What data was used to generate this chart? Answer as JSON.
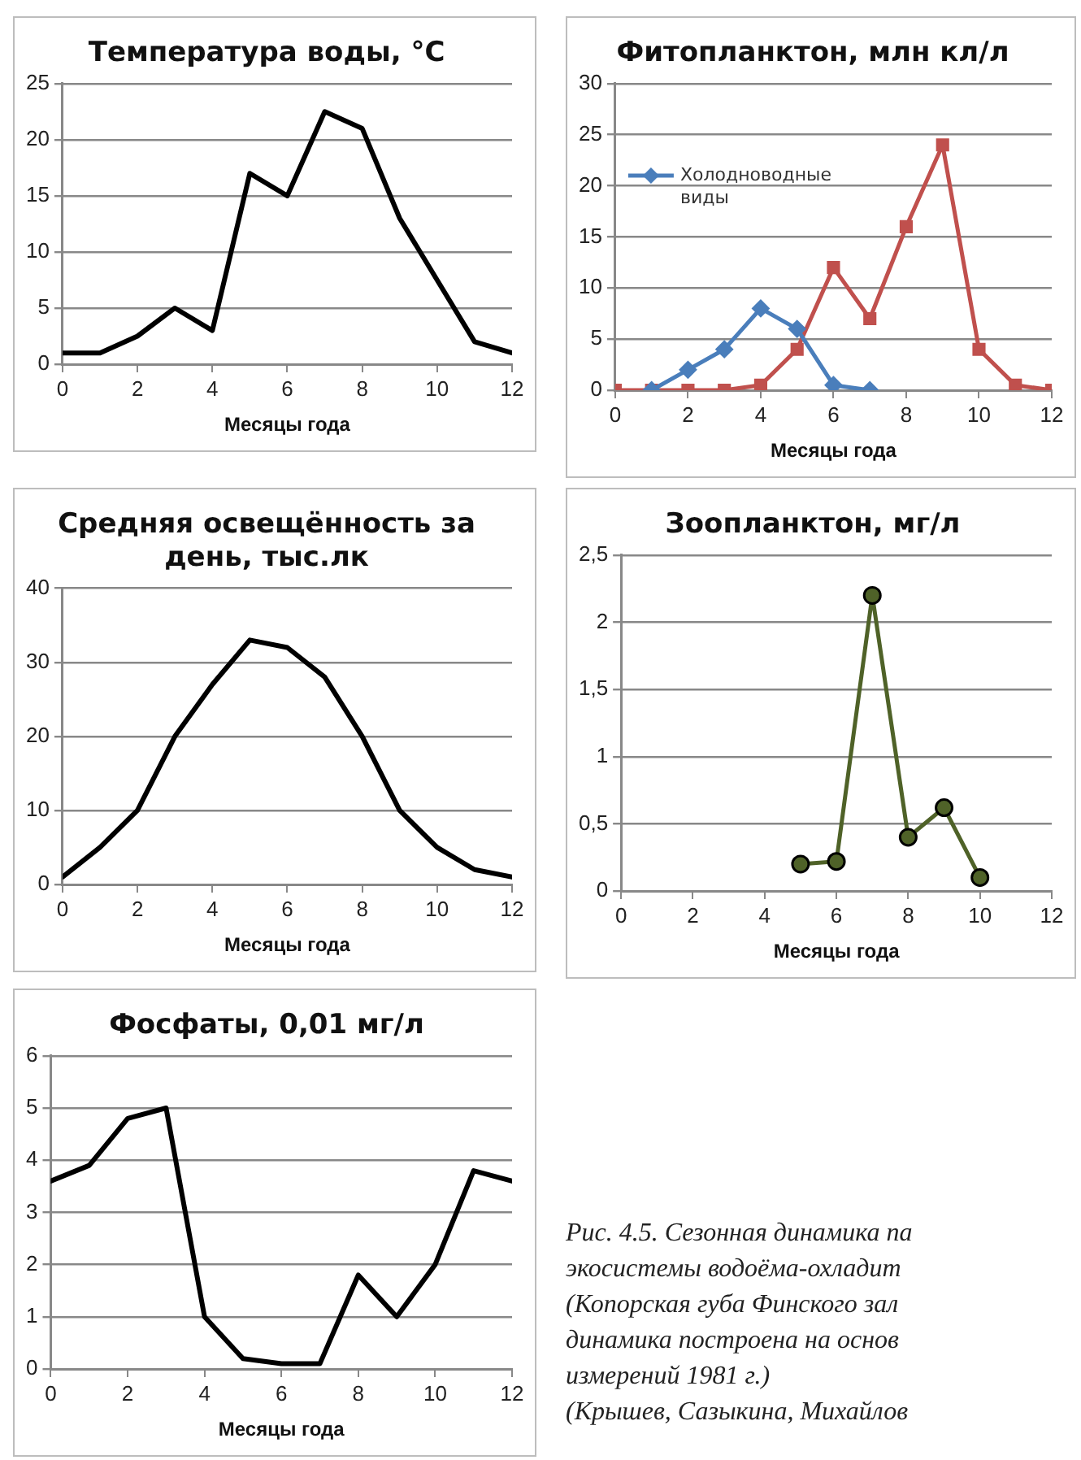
{
  "chart_data": [
    {
      "type": "line",
      "title": "Температура воды, °C",
      "xlabel": "Месяцы года",
      "x": [
        0,
        1,
        2,
        3,
        4,
        5,
        6,
        7,
        8,
        9,
        10,
        11,
        12
      ],
      "series": [
        {
          "color": "#000000",
          "values": [
            1,
            1,
            2.5,
            5,
            3,
            17,
            15,
            22.5,
            21,
            13,
            7.5,
            2,
            1
          ]
        }
      ],
      "xlim": [
        0,
        12
      ],
      "xticks": [
        0,
        2,
        4,
        6,
        8,
        10,
        12
      ],
      "ylim": [
        0,
        25
      ],
      "yticks": [
        0,
        5,
        10,
        15,
        20,
        25
      ],
      "grid": "y",
      "legend": false
    },
    {
      "type": "line",
      "title": "Фитопланктон, млн кл/л",
      "xlabel": "Месяцы года",
      "series": [
        {
          "name": "Холодноводные виды",
          "color": "#4a7ebb",
          "marker": "diamond",
          "x": [
            1,
            2,
            3,
            4,
            5,
            6,
            7
          ],
          "values": [
            0,
            2,
            4,
            8,
            6,
            0.5,
            0
          ]
        },
        {
          "color": "#c0504d",
          "marker": "square",
          "x": [
            0,
            1,
            2,
            3,
            4,
            5,
            6,
            7,
            8,
            9,
            10,
            11,
            12
          ],
          "values": [
            0,
            0,
            0,
            0,
            0.5,
            4,
            12,
            7,
            16,
            24,
            4,
            0.5,
            0
          ]
        }
      ],
      "xlim": [
        0,
        12
      ],
      "xticks": [
        0,
        2,
        4,
        6,
        8,
        10,
        12
      ],
      "ylim": [
        0,
        30
      ],
      "yticks": [
        0,
        5,
        10,
        15,
        20,
        25,
        30
      ],
      "grid": "y",
      "legend": "top left"
    },
    {
      "type": "line",
      "title": "Средняя освещённость за день, тыс.лк",
      "xlabel": "Месяцы года",
      "x": [
        0,
        1,
        2,
        3,
        4,
        5,
        6,
        7,
        8,
        9,
        10,
        11,
        12
      ],
      "series": [
        {
          "color": "#000000",
          "values": [
            1,
            5,
            10,
            20,
            27,
            33,
            32,
            28,
            20,
            10,
            5,
            2,
            1
          ]
        }
      ],
      "xlim": [
        0,
        12
      ],
      "xticks": [
        0,
        2,
        4,
        6,
        8,
        10,
        12
      ],
      "ylim": [
        0,
        40
      ],
      "yticks": [
        0,
        10,
        20,
        30,
        40
      ],
      "grid": "y",
      "legend": false
    },
    {
      "type": "line",
      "title": "Зоопланктон, мг/л",
      "xlabel": "Месяцы года",
      "x": [
        5,
        6,
        7,
        8,
        9,
        10
      ],
      "marker": "circle",
      "series": [
        {
          "color": "#4f6228",
          "values": [
            0.2,
            0.22,
            2.2,
            0.4,
            0.62,
            0.1
          ]
        }
      ],
      "xlim": [
        0,
        12
      ],
      "xticks": [
        0,
        2,
        4,
        6,
        8,
        10,
        12
      ],
      "ylim": [
        0,
        2.5
      ],
      "yticks": [
        0,
        {
          "value": 0.5,
          "label": "0,5"
        },
        1,
        {
          "value": 1.5,
          "label": "1,5"
        },
        2,
        {
          "value": 2.5,
          "label": "2,5"
        }
      ],
      "grid": "y",
      "legend": false
    },
    {
      "type": "line",
      "title": "Фосфаты, 0,01 мг/л",
      "xlabel": "Месяцы года",
      "x": [
        0,
        1,
        2,
        3,
        4,
        5,
        6,
        7,
        8,
        9,
        10,
        11,
        12
      ],
      "series": [
        {
          "color": "#000000",
          "values": [
            3.6,
            3.9,
            4.8,
            5,
            1,
            0.2,
            0.1,
            0.1,
            1.8,
            1,
            2,
            3.8,
            3.6
          ]
        }
      ],
      "xlim": [
        0,
        12
      ],
      "xticks": [
        0,
        2,
        4,
        6,
        8,
        10,
        12
      ],
      "ylim": [
        0,
        6
      ],
      "yticks": [
        0,
        1,
        2,
        3,
        4,
        5,
        6
      ],
      "grid": "y",
      "legend": false,
      "annotations": [
        "Рис. 4.5. Сезонная динамика па\nэкосистемы водоёма-охладит\n(Копорская губа Финского зал\nдинамика построена на основ\nизмерений 1981 г.)\n(Крышев, Сазыкина, Михайлов"
      ]
    }
  ]
}
